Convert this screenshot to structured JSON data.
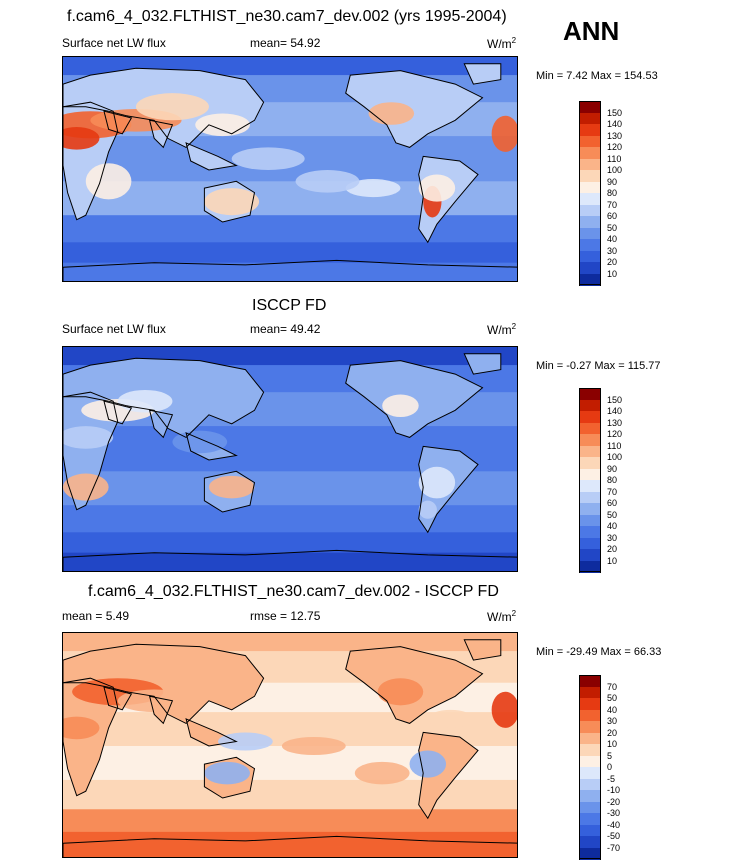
{
  "header": {
    "main_title": "f.cam6_4_032.FLTHIST_ne30.cam7_dev.002 (yrs 1995-2004)",
    "season": "ANN"
  },
  "panels": [
    {
      "title": "",
      "left_label": "Surface net LW flux",
      "center_label": "mean=  54.92",
      "units_base": "W/m",
      "units_exp": "2",
      "minmax": "Min =   7.42 Max = 154.53",
      "levels": [
        "150",
        "140",
        "130",
        "120",
        "110",
        "100",
        "90",
        "80",
        "70",
        "60",
        "50",
        "40",
        "30",
        "20",
        "10"
      ],
      "colors": [
        "#8a0000",
        "#c21d00",
        "#e63a12",
        "#f2622f",
        "#f78c58",
        "#fab489",
        "#fcd7b8",
        "#fdf0e4",
        "#dde8fb",
        "#b8cdf6",
        "#8fb0ef",
        "#6a93ea",
        "#4c78e6",
        "#3560dc",
        "#2146c6",
        "#0e2b9e"
      ],
      "field": "model"
    },
    {
      "title": "ISCCP FD",
      "left_label": "Surface net LW flux",
      "center_label": "mean=  49.42",
      "units_base": "W/m",
      "units_exp": "2",
      "minmax": "Min =  -0.27 Max = 115.77",
      "levels": [
        "150",
        "140",
        "130",
        "120",
        "110",
        "100",
        "90",
        "80",
        "70",
        "60",
        "50",
        "40",
        "30",
        "20",
        "10"
      ],
      "colors": [
        "#8a0000",
        "#c21d00",
        "#e63a12",
        "#f2622f",
        "#f78c58",
        "#fab489",
        "#fcd7b8",
        "#fdf0e4",
        "#dde8fb",
        "#b8cdf6",
        "#8fb0ef",
        "#6a93ea",
        "#4c78e6",
        "#3560dc",
        "#2146c6",
        "#0e2b9e"
      ],
      "field": "obs"
    },
    {
      "title": "f.cam6_4_032.FLTHIST_ne30.cam7_dev.002 - ISCCP FD",
      "left_label": "mean =   5.49",
      "center_label": "rmse =  12.75",
      "units_base": "W/m",
      "units_exp": "2",
      "minmax": "Min = -29.49 Max =  66.33",
      "levels": [
        "70",
        "50",
        "40",
        "30",
        "20",
        "10",
        "5",
        "0",
        "-5",
        "-10",
        "-20",
        "-30",
        "-40",
        "-50",
        "-70"
      ],
      "colors": [
        "#8a0000",
        "#c21d00",
        "#e63a12",
        "#f2622f",
        "#f78c58",
        "#fab489",
        "#fcd7b8",
        "#fdf0e4",
        "#dde8fb",
        "#b8cdf6",
        "#8fb0ef",
        "#6a93ea",
        "#4c78e6",
        "#3560dc",
        "#2146c6",
        "#0e2b9e"
      ],
      "field": "diff"
    }
  ],
  "chart_data": {
    "type": "heatmap",
    "projection": "global lat-lon map",
    "maps": [
      {
        "panel": "model",
        "mean": 54.92,
        "min": 7.42,
        "max": 154.53,
        "units": "W/m2"
      },
      {
        "panel": "ISCCP FD",
        "mean": 49.42,
        "min": -0.27,
        "max": 115.77,
        "units": "W/m2"
      },
      {
        "panel": "difference",
        "mean": 5.49,
        "rmse": 12.75,
        "min": -29.49,
        "max": 66.33,
        "units": "W/m2"
      }
    ]
  }
}
